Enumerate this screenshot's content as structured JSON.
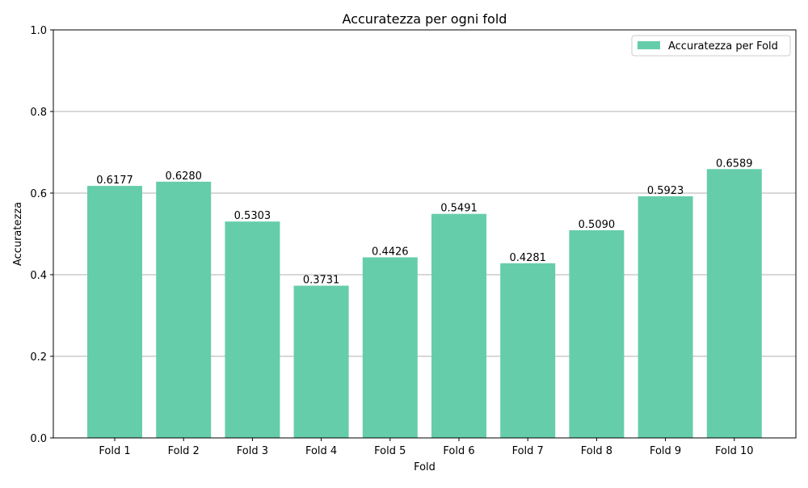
{
  "chart_data": {
    "type": "bar",
    "title": "Accuratezza per ogni fold",
    "xlabel": "Fold",
    "ylabel": "Accuratezza",
    "categories": [
      "Fold 1",
      "Fold 2",
      "Fold 3",
      "Fold 4",
      "Fold 5",
      "Fold 6",
      "Fold 7",
      "Fold 8",
      "Fold 9",
      "Fold 10"
    ],
    "series": [
      {
        "name": "Accuratezza per Fold",
        "values": [
          0.6177,
          0.628,
          0.5303,
          0.3731,
          0.4426,
          0.5491,
          0.4281,
          0.509,
          0.5923,
          0.6589
        ],
        "data_labels": [
          "0.6177",
          "0.6280",
          "0.5303",
          "0.3731",
          "0.4426",
          "0.5491",
          "0.4281",
          "0.5090",
          "0.5923",
          "0.6589"
        ],
        "color": "#66cdaa"
      }
    ],
    "ylim": [
      0,
      1.0
    ],
    "yticks": [
      "0.0",
      "0.2",
      "0.4",
      "0.6",
      "0.8",
      "1.0"
    ],
    "grid": "y",
    "legend_position": "top-right"
  }
}
